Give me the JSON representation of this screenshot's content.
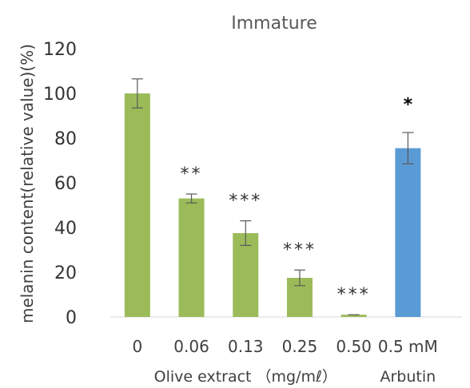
{
  "chart_data": {
    "type": "bar",
    "title": "Immature",
    "ylabel": "melanin content(relative value)(%)",
    "ylim": [
      0,
      120
    ],
    "yticks": [
      0,
      20,
      40,
      60,
      80,
      100,
      120
    ],
    "categories": [
      "0",
      "0.06",
      "0.13",
      "0.25",
      "0.50",
      "0.5 mM"
    ],
    "values": [
      100,
      53,
      37.5,
      17.5,
      1,
      75.5
    ],
    "errors": [
      6.5,
      2,
      5.5,
      3.5,
      0,
      7
    ],
    "significance": [
      "",
      "**",
      "***",
      "***",
      "***",
      "*"
    ],
    "bar_colors": [
      "#9bbb59",
      "#9bbb59",
      "#9bbb59",
      "#9bbb59",
      "#9bbb59",
      "#5b9bd5"
    ],
    "group_labels": [
      {
        "text": "Olive extract （mg/mℓ）",
        "categories": [
          0,
          1,
          2,
          3,
          4
        ]
      },
      {
        "text": "Arbutin",
        "categories": [
          5
        ]
      }
    ],
    "grid": false,
    "legend": "none"
  }
}
